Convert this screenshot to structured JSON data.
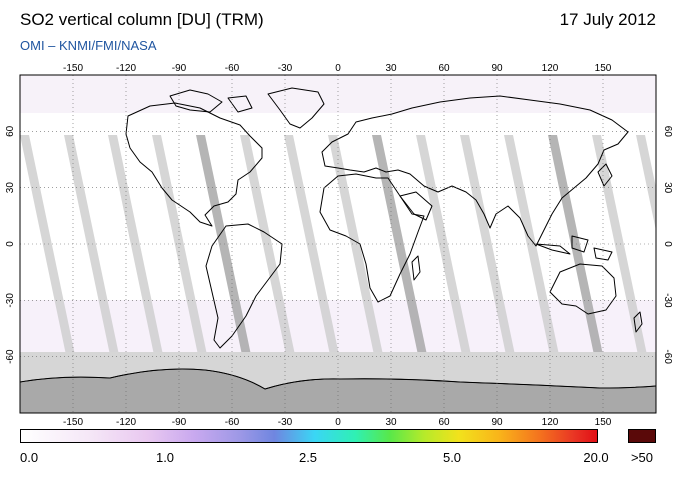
{
  "header": {
    "title": "SO2 vertical column [DU] (TRM)",
    "date": "17 July 2012",
    "credit": "OMI  –  KNMI/FMI/NASA"
  },
  "map": {
    "lon_ticks": [
      "-150",
      "-120",
      "-90",
      "-60",
      "-30",
      "0",
      "30",
      "60",
      "90",
      "120",
      "150"
    ],
    "lat_ticks": [
      "60",
      "30",
      "0",
      "-30",
      "-60"
    ],
    "projection": "equirectangular",
    "grid": "dotted"
  },
  "colorbar": {
    "labels": [
      "0.0",
      "1.0",
      "2.5",
      "5.0",
      "20.0"
    ],
    "over_label": ">50",
    "over_color": "#5a0909"
  }
}
